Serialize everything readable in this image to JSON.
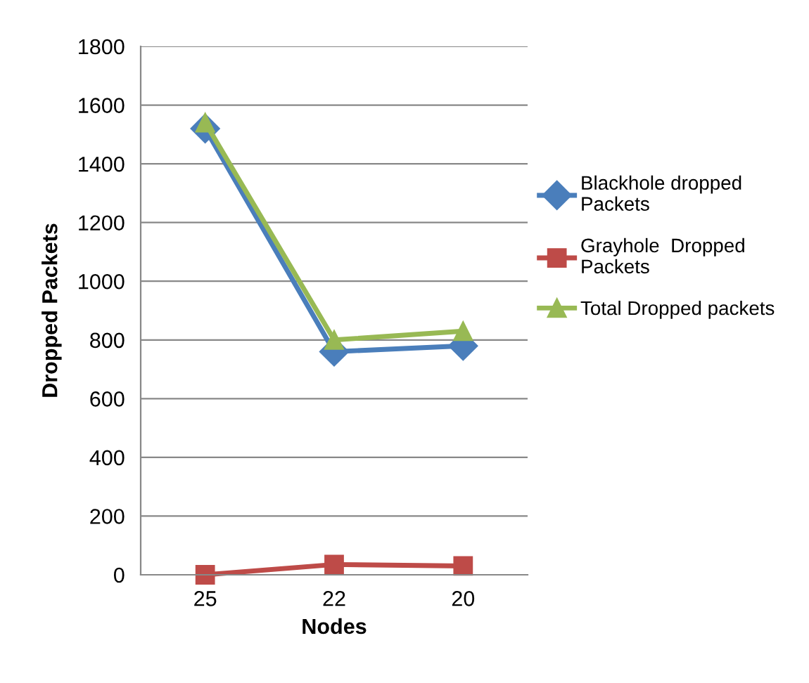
{
  "chart_data": {
    "type": "line",
    "xlabel": "Nodes",
    "ylabel": "Dropped Packets",
    "categories": [
      "25",
      "22",
      "20"
    ],
    "series": [
      {
        "name": "Blackhole dropped\nPackets",
        "color": "#4a7ebb",
        "marker": "diamond",
        "values": [
          1520,
          760,
          780
        ]
      },
      {
        "name": "Grayhole  Dropped\nPackets",
        "color": "#be4b48",
        "marker": "square",
        "values": [
          0,
          35,
          30
        ]
      },
      {
        "name": "Total Dropped packets",
        "color": "#98b954",
        "marker": "triangle",
        "values": [
          1540,
          800,
          830
        ]
      }
    ],
    "ylim": [
      0,
      1800
    ],
    "yticks": [
      0,
      200,
      400,
      600,
      800,
      1000,
      1200,
      1400,
      1600,
      1800
    ],
    "grid": "y",
    "legend": "right"
  }
}
